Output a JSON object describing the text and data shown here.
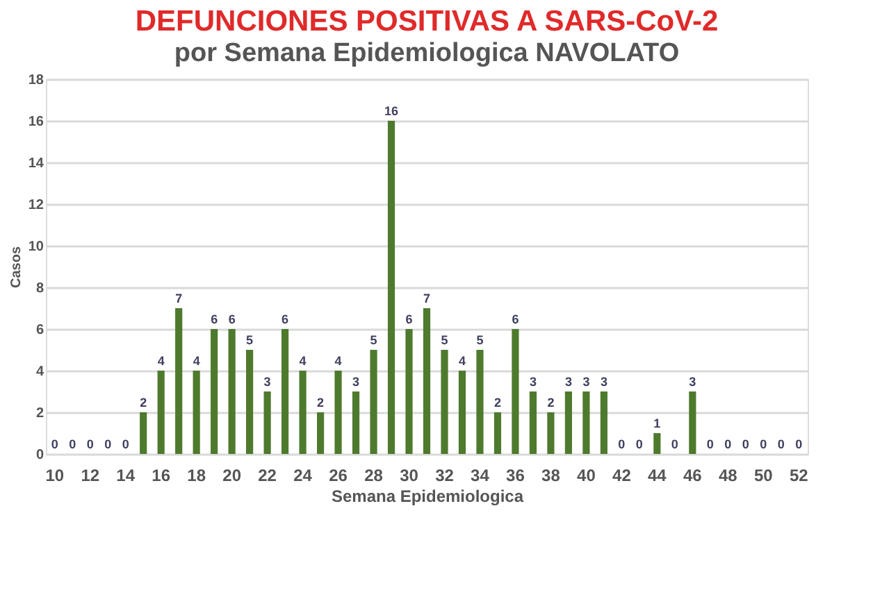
{
  "chart_data": {
    "type": "bar",
    "title": "DEFUNCIONES POSITIVAS A SARS-CoV-2",
    "subtitle": "por Semana Epidemiologica NAVOLATO",
    "xlabel": "Semana Epidemiologica",
    "ylabel": "Casos",
    "categories": [
      "10",
      null,
      "12",
      null,
      "14",
      null,
      "16",
      null,
      "18",
      null,
      "20",
      null,
      "22",
      null,
      "24",
      null,
      "26",
      null,
      "28",
      null,
      "30",
      null,
      "32",
      null,
      "34",
      null,
      "36",
      null,
      "38",
      null,
      "40",
      null,
      "42",
      null,
      "44",
      null,
      "46",
      null,
      "48",
      null,
      "50",
      null,
      "52"
    ],
    "values": [
      0,
      0,
      0,
      0,
      0,
      2,
      4,
      7,
      4,
      6,
      6,
      5,
      3,
      6,
      4,
      2,
      4,
      3,
      5,
      16,
      6,
      7,
      5,
      4,
      5,
      2,
      6,
      3,
      2,
      3,
      3,
      3,
      0,
      0,
      1,
      0,
      3,
      0,
      0,
      0,
      0,
      0,
      0
    ],
    "color": "#4e7a2e",
    "ylim": [
      0,
      18
    ],
    "yticks": [
      0,
      2,
      4,
      6,
      8,
      10,
      12,
      14,
      16,
      18
    ],
    "grid": "y",
    "data_labels": true
  }
}
